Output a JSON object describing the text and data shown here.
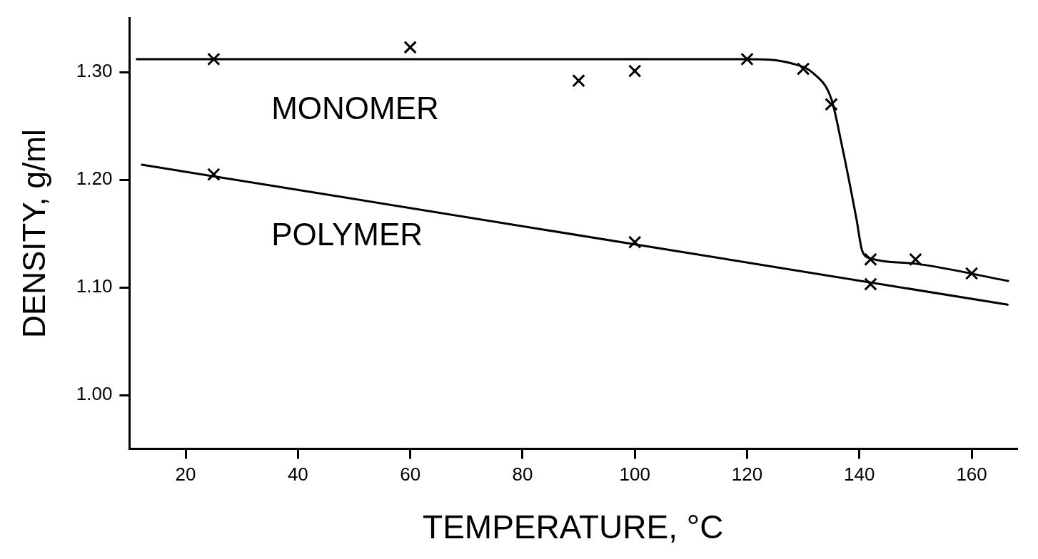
{
  "chart_data": {
    "type": "line",
    "xlabel": "TEMPERATURE, °C",
    "ylabel": "DENSITY, g/ml",
    "xlim": [
      10,
      168
    ],
    "ylim": [
      0.95,
      1.35
    ],
    "xticks": [
      20,
      40,
      60,
      80,
      100,
      120,
      140,
      160
    ],
    "yticks": [
      {
        "value": 1.0,
        "label": "1.00"
      },
      {
        "value": 1.1,
        "label": "1.10"
      },
      {
        "value": 1.2,
        "label": "1.20"
      },
      {
        "value": 1.3,
        "label": "1.30"
      }
    ],
    "grid": false,
    "legend": false,
    "marker": "none",
    "line_style": "solid",
    "series": [
      {
        "type": "line",
        "name": "MONOMER",
        "color": "#000000",
        "x": [
          11.3,
          120,
          128,
          132,
          135,
          137,
          139.5,
          140.5,
          142,
          150,
          166.5
        ],
        "values": [
          1.312,
          1.312,
          1.308,
          1.298,
          1.275,
          1.229,
          1.163,
          1.134,
          1.127,
          1.122,
          1.106
        ]
      },
      {
        "type": "scatter",
        "marker": "cross",
        "color": "#000000",
        "x": [
          25,
          60,
          90,
          100,
          120,
          130,
          135,
          142,
          150,
          160
        ],
        "values": [
          1.312,
          1.323,
          1.292,
          1.301,
          1.312,
          1.303,
          1.27,
          1.126,
          1.126,
          1.113
        ]
      },
      {
        "type": "line",
        "name": "POLYMER",
        "color": "#000000",
        "x": [
          12.2,
          166.4
        ],
        "values": [
          1.214,
          1.084
        ]
      },
      {
        "type": "scatter",
        "marker": "cross",
        "color": "#000000",
        "x": [
          25,
          100,
          142
        ],
        "values": [
          1.205,
          1.142,
          1.103
        ]
      }
    ]
  }
}
